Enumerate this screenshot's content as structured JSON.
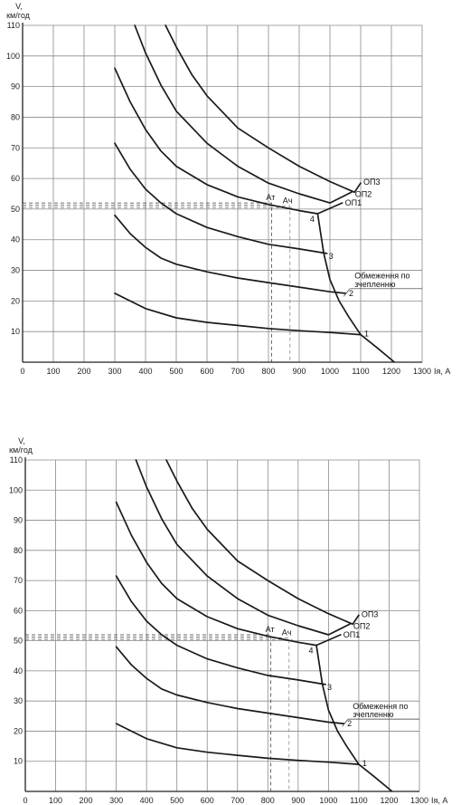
{
  "chart_data": [
    {
      "type": "line",
      "xlabel": "Iя, А",
      "ylabel": "V, км/год",
      "xlim": [
        0,
        1300
      ],
      "ylim": [
        0,
        110
      ],
      "x_ticks": [
        "0",
        "100",
        "200",
        "300",
        "400",
        "500",
        "600",
        "700",
        "800",
        "900",
        "1000",
        "1100",
        "1200",
        "1300"
      ],
      "y_ticks": [
        "10",
        "20",
        "30",
        "40",
        "50",
        "60",
        "70",
        "80",
        "90",
        "100",
        "110"
      ],
      "series": [
        {
          "name": "1",
          "points": [
            [
              300,
              22.5
            ],
            [
              400,
              17.5
            ],
            [
              500,
              14.5
            ],
            [
              600,
              13
            ],
            [
              700,
              12
            ],
            [
              800,
              11
            ],
            [
              900,
              10.3
            ],
            [
              1000,
              9.7
            ],
            [
              1100,
              9
            ]
          ]
        },
        {
          "name": "2",
          "points": [
            [
              300,
              48
            ],
            [
              350,
              42
            ],
            [
              400,
              37.5
            ],
            [
              450,
              34
            ],
            [
              500,
              32
            ],
            [
              600,
              29.5
            ],
            [
              700,
              27.5
            ],
            [
              800,
              26
            ],
            [
              900,
              24.5
            ],
            [
              1000,
              23
            ],
            [
              1050,
              22.5
            ]
          ]
        },
        {
          "name": "3",
          "points": [
            [
              300,
              71.5
            ],
            [
              350,
              63
            ],
            [
              400,
              56.5
            ],
            [
              450,
              52
            ],
            [
              500,
              48.5
            ],
            [
              600,
              44
            ],
            [
              700,
              41
            ],
            [
              800,
              38.5
            ],
            [
              900,
              37
            ],
            [
              990,
              35.5
            ]
          ]
        },
        {
          "name": "ОП1",
          "points": [
            [
              300,
              96
            ],
            [
              350,
              85
            ],
            [
              400,
              76
            ],
            [
              450,
              69
            ],
            [
              500,
              64
            ],
            [
              600,
              58
            ],
            [
              700,
              54
            ],
            [
              800,
              51.5
            ],
            [
              900,
              49.5
            ],
            [
              960,
              48.5
            ],
            [
              1040,
              52
            ]
          ]
        },
        {
          "name": "ОП2",
          "points": [
            [
              365,
              110
            ],
            [
              400,
              101
            ],
            [
              450,
              90.5
            ],
            [
              500,
              82
            ],
            [
              600,
              71.5
            ],
            [
              700,
              64
            ],
            [
              800,
              58.5
            ],
            [
              900,
              55
            ],
            [
              1000,
              52
            ],
            [
              1070,
              55.5
            ]
          ]
        },
        {
          "name": "ОП3",
          "points": [
            [
              465,
              110
            ],
            [
              500,
              103
            ],
            [
              550,
              94
            ],
            [
              600,
              87
            ],
            [
              700,
              76.5
            ],
            [
              800,
              70
            ],
            [
              900,
              64
            ],
            [
              1000,
              59
            ],
            [
              1080,
              55.5
            ],
            [
              1100,
              58.5
            ]
          ]
        }
      ],
      "adhesion_limit": [
        [
          960,
          48.5
        ],
        [
          980,
          35.5
        ],
        [
          1000,
          27
        ],
        [
          1030,
          20
        ],
        [
          1060,
          15
        ],
        [
          1100,
          9
        ],
        [
          1150,
          5
        ],
        [
          1210,
          0
        ]
      ],
      "markers": [
        {
          "label": "Ат",
          "x": 810,
          "y": 52
        },
        {
          "label": "Ач",
          "x": 870,
          "y": 51
        }
      ],
      "annotations": [
        "4",
        "1",
        "2",
        "3",
        "ОП1",
        "ОП2",
        "ОП3"
      ],
      "adhesion_label": [
        "Обмеження по",
        "зчепленню"
      ]
    },
    {
      "type": "line",
      "xlabel": "Iя, А",
      "ylabel": "V, км/год",
      "xlim": [
        0,
        1300
      ],
      "ylim": [
        0,
        110
      ],
      "x_ticks": [
        "0",
        "100",
        "200",
        "300",
        "400",
        "500",
        "600",
        "700",
        "800",
        "900",
        "1000",
        "1100",
        "1200",
        "1300"
      ],
      "y_ticks": [
        "10",
        "20",
        "30",
        "40",
        "50",
        "60",
        "70",
        "80",
        "90",
        "100",
        "110"
      ],
      "series": [
        {
          "name": "1",
          "points": [
            [
              300,
              22.5
            ],
            [
              400,
              17.5
            ],
            [
              500,
              14.5
            ],
            [
              600,
              13
            ],
            [
              700,
              12
            ],
            [
              800,
              11
            ],
            [
              900,
              10.3
            ],
            [
              1000,
              9.7
            ],
            [
              1100,
              9
            ]
          ]
        },
        {
          "name": "2",
          "points": [
            [
              300,
              48
            ],
            [
              350,
              42
            ],
            [
              400,
              37.5
            ],
            [
              450,
              34
            ],
            [
              500,
              32
            ],
            [
              600,
              29.5
            ],
            [
              700,
              27.5
            ],
            [
              800,
              26
            ],
            [
              900,
              24.5
            ],
            [
              1000,
              23
            ],
            [
              1050,
              22.5
            ]
          ]
        },
        {
          "name": "3",
          "points": [
            [
              300,
              71.5
            ],
            [
              350,
              63
            ],
            [
              400,
              56.5
            ],
            [
              450,
              52
            ],
            [
              500,
              48.5
            ],
            [
              600,
              44
            ],
            [
              700,
              41
            ],
            [
              800,
              38.5
            ],
            [
              900,
              37
            ],
            [
              990,
              35.5
            ]
          ]
        },
        {
          "name": "ОП1",
          "points": [
            [
              300,
              96
            ],
            [
              350,
              85
            ],
            [
              400,
              76
            ],
            [
              450,
              69
            ],
            [
              500,
              64
            ],
            [
              600,
              58
            ],
            [
              700,
              54
            ],
            [
              800,
              51.5
            ],
            [
              900,
              49.5
            ],
            [
              960,
              48.5
            ],
            [
              1040,
              52
            ]
          ]
        },
        {
          "name": "ОП2",
          "points": [
            [
              365,
              110
            ],
            [
              400,
              101
            ],
            [
              450,
              90.5
            ],
            [
              500,
              82
            ],
            [
              600,
              71.5
            ],
            [
              700,
              64
            ],
            [
              800,
              58.5
            ],
            [
              900,
              55
            ],
            [
              1000,
              52
            ],
            [
              1070,
              55.5
            ]
          ]
        },
        {
          "name": "ОП3",
          "points": [
            [
              465,
              110
            ],
            [
              500,
              103
            ],
            [
              550,
              94
            ],
            [
              600,
              87
            ],
            [
              700,
              76.5
            ],
            [
              800,
              70
            ],
            [
              900,
              64
            ],
            [
              1000,
              59
            ],
            [
              1080,
              55.5
            ],
            [
              1100,
              58.5
            ]
          ]
        }
      ],
      "adhesion_limit": [
        [
          960,
          48.5
        ],
        [
          980,
          35.5
        ],
        [
          1000,
          27
        ],
        [
          1030,
          20
        ],
        [
          1060,
          15
        ],
        [
          1100,
          9
        ],
        [
          1150,
          5
        ],
        [
          1210,
          0
        ]
      ],
      "markers": [
        {
          "label": "Ат",
          "x": 810,
          "y": 52
        },
        {
          "label": "Ач",
          "x": 870,
          "y": 51
        }
      ],
      "annotations": [
        "4",
        "1",
        "2",
        "3",
        "ОП1",
        "ОП2",
        "ОП3"
      ],
      "adhesion_label": [
        "Обмеження по",
        "зчепленню"
      ]
    }
  ]
}
